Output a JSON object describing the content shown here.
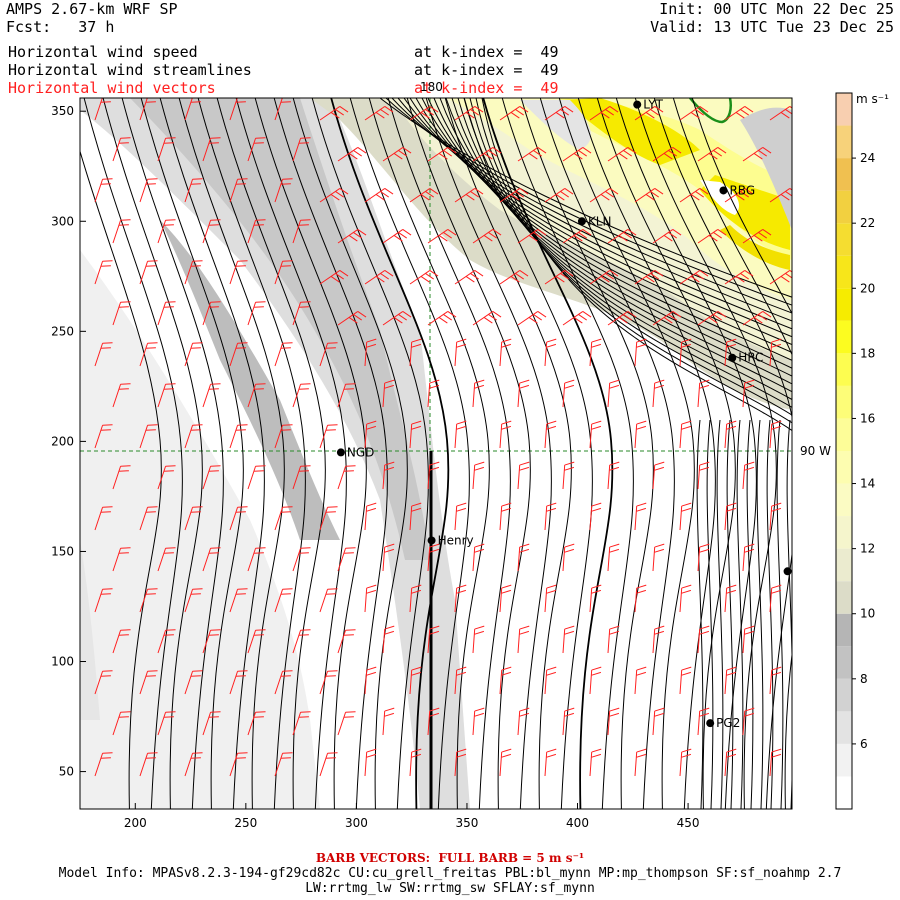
{
  "header": {
    "title": "AMPS 2.67-km WRF SP",
    "fcst": "Fcst:   37 h",
    "init": "Init: 00 UTC Mon 22 Dec 25",
    "valid": "Valid: 13 UTC Tue 23 Dec 25",
    "layers": [
      {
        "label": "Horizontal wind speed",
        "kindex": "at k-index =  49",
        "color": "#000000"
      },
      {
        "label": "Horizontal wind streamlines",
        "kindex": "at k-index =  49",
        "color": "#000000"
      },
      {
        "label": "Horizontal wind vectors",
        "kindex": "at k-index =  49",
        "color": "#ff2020"
      }
    ]
  },
  "map": {
    "lon_label": "180",
    "lat_label": "90 W",
    "stations": [
      {
        "name": "LYT",
        "x": 427,
        "y": 353
      },
      {
        "name": "RBG",
        "x": 466,
        "y": 314
      },
      {
        "name": "KLN",
        "x": 402,
        "y": 300
      },
      {
        "name": "HRC",
        "x": 470,
        "y": 238
      },
      {
        "name": "NGD",
        "x": 293,
        "y": 195
      },
      {
        "name": "Henry",
        "x": 334,
        "y": 155
      },
      {
        "name": "",
        "x": 495,
        "y": 141
      },
      {
        "name": "PG2",
        "x": 460,
        "y": 72
      }
    ]
  },
  "chart_data": {
    "type": "heatmap",
    "xlim": [
      175,
      497
    ],
    "ylim": [
      33,
      356
    ],
    "xticks": [
      200,
      250,
      300,
      350,
      400,
      450
    ],
    "yticks": [
      50,
      100,
      150,
      200,
      250,
      300,
      350
    ],
    "colorbar": {
      "unit": "m s⁻¹",
      "levels": [
        4,
        5,
        6,
        7,
        8,
        9,
        10,
        11,
        12,
        13,
        14,
        15,
        16,
        17,
        18,
        19,
        20,
        21,
        22,
        23,
        24,
        25,
        26
      ],
      "labels": [
        6,
        8,
        10,
        12,
        14,
        16,
        18,
        20,
        22,
        24
      ],
      "colors": [
        "#ffffff",
        "#f2f2f2",
        "#e3e3e3",
        "#d2d2d2",
        "#c2c2c2",
        "#b5b5b5",
        "#dcdcc8",
        "#ebebcf",
        "#f5f5cc",
        "#fbfbc3",
        "#fdfdb0",
        "#fdfd98",
        "#fdfd78",
        "#fdfd50",
        "#fcfc20",
        "#f6ec00",
        "#f7e61a",
        "#f5dd30",
        "#f2d040",
        "#f0c050",
        "#f7d27a",
        "#f8cfb0"
      ]
    }
  },
  "footer": {
    "barb": "BARB VECTORS:  FULL BARB = 5 m s⁻¹",
    "model_info": "Model Info: MPASv8.2.3-194-gf29cd82c CU:cu_grell_freitas PBL:bl_mynn MP:mp_thompson SF:sf_noahmp 2.7",
    "model_info2": "LW:rrtmg_lw SW:rrtmg_sw SFLAY:sf_mynn"
  }
}
